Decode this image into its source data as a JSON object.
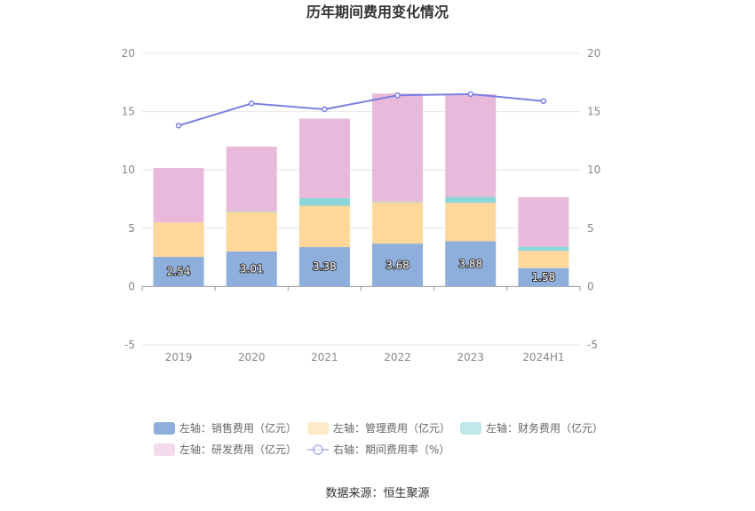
{
  "chart_data": {
    "type": "bar",
    "title": "历年期间费用变化情况",
    "source": "数据来源：恒生聚源",
    "categories": [
      "2019",
      "2020",
      "2021",
      "2022",
      "2023",
      "2024H1"
    ],
    "y_left": {
      "min": -5,
      "max": 20,
      "ticks": [
        -5,
        0,
        5,
        10,
        15,
        20
      ]
    },
    "y_right": {
      "min": -5,
      "max": 20,
      "ticks": [
        -5,
        0,
        5,
        10,
        15,
        20
      ]
    },
    "stacked": true,
    "series": [
      {
        "name": "左轴：销售费用（亿元）",
        "type": "bar",
        "axis": "left",
        "color": "#8eaedb",
        "values": [
          2.54,
          3.01,
          3.38,
          3.68,
          3.88,
          1.58
        ],
        "show_labels": true
      },
      {
        "name": "左轴：管理费用（亿元）",
        "type": "bar",
        "axis": "left",
        "color": "#fdd89a",
        "values": [
          2.95,
          3.38,
          3.55,
          3.55,
          3.3,
          1.48
        ]
      },
      {
        "name": "左轴：财务费用（亿元）",
        "type": "bar",
        "axis": "left",
        "color": "#88d6d8",
        "values": [
          0.0,
          0.05,
          0.65,
          0.05,
          0.5,
          0.35
        ]
      },
      {
        "name": "左轴：研发费用（亿元）",
        "type": "bar",
        "axis": "left",
        "color": "#e8b9da",
        "values": [
          4.67,
          5.56,
          6.82,
          9.27,
          8.82,
          4.26
        ]
      },
      {
        "name": "右轴：期间费用率（%）",
        "type": "line",
        "axis": "right",
        "color": "#7b7fe0",
        "values": [
          13.8,
          15.7,
          15.2,
          16.4,
          16.5,
          15.9
        ]
      }
    ],
    "legend_position": "bottom",
    "grid": true
  }
}
